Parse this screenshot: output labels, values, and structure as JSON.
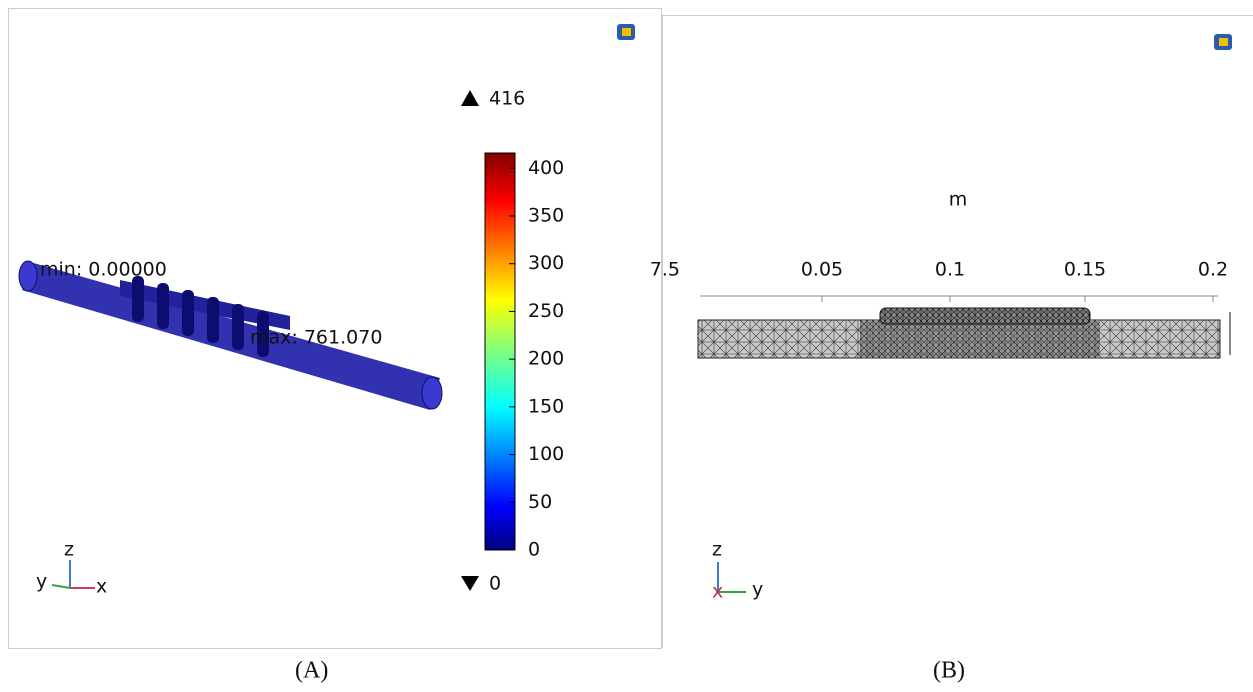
{
  "panel_a": {
    "colorbar": {
      "max": 416,
      "min": 0,
      "ticks": [
        0,
        50,
        100,
        150,
        200,
        250,
        300,
        350,
        400
      ]
    },
    "min_label": "min: 0.00000",
    "max_label": "max: 761.070",
    "triad": {
      "up": "z",
      "left": "y",
      "right": "x"
    },
    "caption": "(A)"
  },
  "panel_b": {
    "unit": "m",
    "axis_labels": [
      "7.5",
      "0.05",
      "0.1",
      "0.15",
      "0.2"
    ],
    "triad": {
      "up": "z",
      "left": "x",
      "right": "y"
    },
    "caption": "(B)"
  }
}
